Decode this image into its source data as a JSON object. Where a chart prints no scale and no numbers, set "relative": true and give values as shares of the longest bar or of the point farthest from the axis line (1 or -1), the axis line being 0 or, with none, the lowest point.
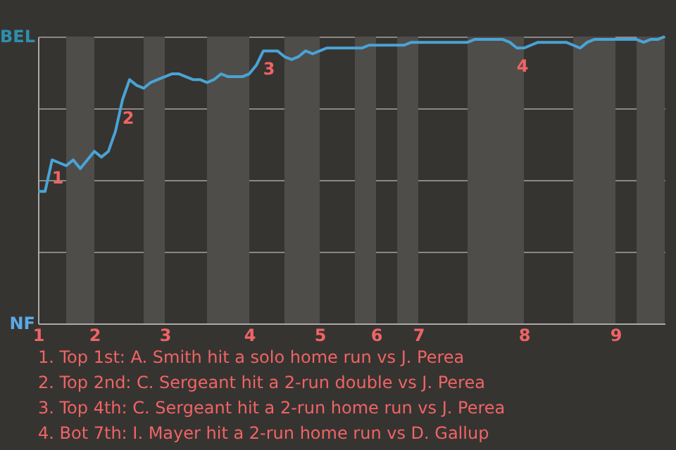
{
  "chart_data": {
    "type": "line",
    "relative": true,
    "categories": [
      "1",
      null,
      null,
      null,
      null,
      null,
      null,
      null,
      "2",
      null,
      null,
      null,
      null,
      null,
      null,
      null,
      null,
      null,
      "3",
      null,
      null,
      null,
      null,
      null,
      null,
      null,
      null,
      null,
      null,
      null,
      "4",
      null,
      null,
      null,
      null,
      null,
      null,
      null,
      null,
      null,
      "5",
      null,
      null,
      null,
      null,
      null,
      null,
      null,
      "6",
      null,
      null,
      null,
      null,
      null,
      "7",
      null,
      null,
      null,
      null,
      null,
      null,
      null,
      null,
      null,
      null,
      null,
      null,
      null,
      null,
      "8",
      null,
      null,
      null,
      null,
      null,
      null,
      null,
      null,
      null,
      null,
      null,
      null,
      "9",
      null,
      null,
      null,
      null,
      null,
      null,
      null
    ],
    "series": [
      {
        "color": "#4aa3d6",
        "values": [
          0.46,
          0.46,
          0.57,
          0.56,
          0.55,
          0.57,
          0.54,
          0.57,
          0.6,
          0.58,
          0.6,
          0.67,
          0.78,
          0.85,
          0.83,
          0.82,
          0.84,
          0.85,
          0.86,
          0.87,
          0.87,
          0.86,
          0.85,
          0.85,
          0.84,
          0.85,
          0.87,
          0.86,
          0.86,
          0.86,
          0.87,
          0.9,
          0.95,
          0.95,
          0.95,
          0.93,
          0.92,
          0.93,
          0.95,
          0.94,
          0.95,
          0.96,
          0.96,
          0.96,
          0.96,
          0.96,
          0.96,
          0.97,
          0.97,
          0.97,
          0.97,
          0.97,
          0.97,
          0.98,
          0.98,
          0.98,
          0.98,
          0.98,
          0.98,
          0.98,
          0.98,
          0.98,
          0.99,
          0.99,
          0.99,
          0.99,
          0.99,
          0.98,
          0.96,
          0.96,
          0.97,
          0.98,
          0.98,
          0.98,
          0.98,
          0.98,
          0.97,
          0.96,
          0.98,
          0.99,
          0.99,
          0.99,
          0.99,
          0.99,
          0.99,
          0.99,
          0.98,
          0.99,
          0.99,
          1.0
        ]
      }
    ],
    "grid": "y",
    "line_style": "solid",
    "annotations": [
      "BEL",
      "NF",
      {
        "text": "1",
        "y": 0.57
      },
      {
        "text": "2",
        "y": 0.78
      },
      {
        "text": "3",
        "y": 0.95
      },
      {
        "text": "4",
        "y": 0.96
      },
      "1. Top 1st: A. Smith hit a solo home run vs J. Perea",
      "2. Top 2nd: C. Sergeant hit a 2-run double vs J. Perea",
      "3. Top 4th: C. Sergeant hit a 2-run home run vs J. Perea",
      "4. Bot 7th: I. Mayer hit a 2-run home run vs D. Gallup"
    ]
  }
}
